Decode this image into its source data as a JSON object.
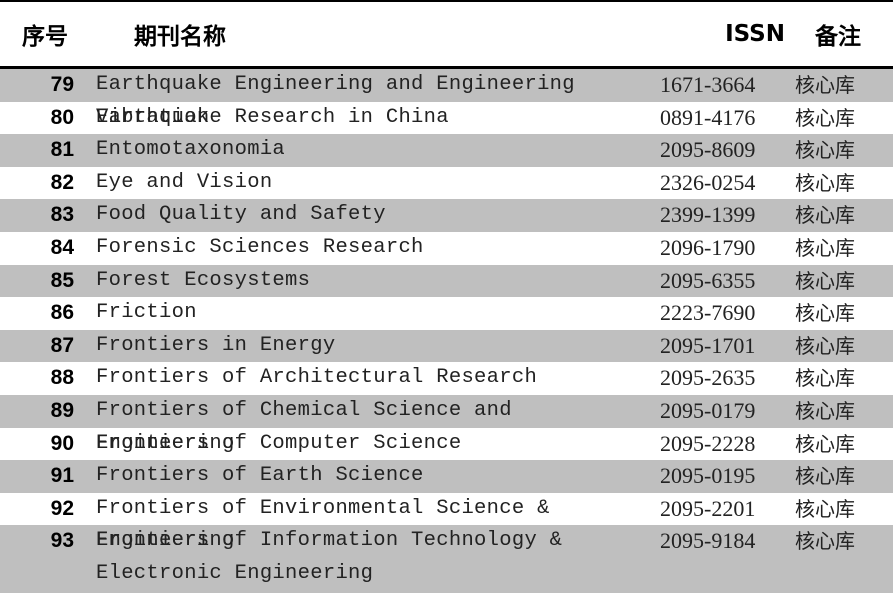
{
  "table": {
    "headers": {
      "no": "序号",
      "name": "期刊名称",
      "issn": "ISSN",
      "note": "备注"
    },
    "colors": {
      "stripe_gray": "#bfbfbf",
      "stripe_white": "#ffffff",
      "border": "#000000"
    },
    "rows": [
      {
        "no": "79",
        "name": "Earthquake Engineering and Engineering Vibration",
        "issn": "1671-3664",
        "note": "核心库"
      },
      {
        "no": "80",
        "name": "Earthquake Research in China",
        "issn": "0891-4176",
        "note": "核心库"
      },
      {
        "no": "81",
        "name": "Entomotaxonomia",
        "issn": "2095-8609",
        "note": "核心库"
      },
      {
        "no": "82",
        "name": "Eye and Vision",
        "issn": "2326-0254",
        "note": "核心库"
      },
      {
        "no": "83",
        "name": "Food Quality and Safety",
        "issn": "2399-1399",
        "note": "核心库"
      },
      {
        "no": "84",
        "name": "Forensic Sciences Research",
        "issn": "2096-1790",
        "note": "核心库"
      },
      {
        "no": "85",
        "name": "Forest Ecosystems",
        "issn": "2095-6355",
        "note": "核心库"
      },
      {
        "no": "86",
        "name": "Friction",
        "issn": "2223-7690",
        "note": "核心库"
      },
      {
        "no": "87",
        "name": "Frontiers in Energy",
        "issn": "2095-1701",
        "note": "核心库"
      },
      {
        "no": "88",
        "name": "Frontiers of Architectural Research",
        "issn": "2095-2635",
        "note": "核心库"
      },
      {
        "no": "89",
        "name": "Frontiers of Chemical Science and Engineering",
        "issn": "2095-0179",
        "note": "核心库"
      },
      {
        "no": "90",
        "name": "Frontiers of Computer Science",
        "issn": "2095-2228",
        "note": "核心库"
      },
      {
        "no": "91",
        "name": "Frontiers of Earth Science",
        "issn": "2095-0195",
        "note": "核心库"
      },
      {
        "no": "92",
        "name": "Frontiers of Environmental Science & Engineering",
        "issn": "2095-2201",
        "note": "核心库"
      },
      {
        "no": "93",
        "name": "Frontiers of Information Technology & Electronic Engineering",
        "issn": "2095-9184",
        "note": "核心库"
      }
    ]
  }
}
